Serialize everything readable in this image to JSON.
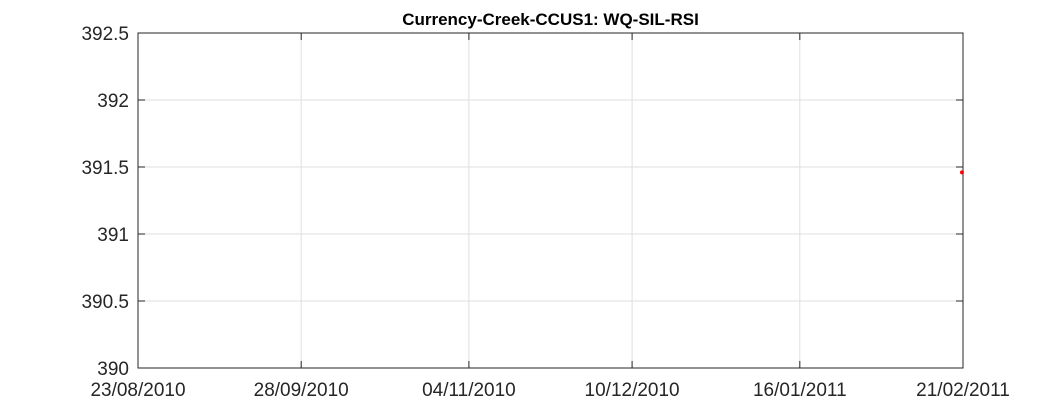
{
  "chart_data": {
    "type": "scatter",
    "title": "Currency-Creek-CCUS1: WQ-SIL-RSI",
    "xlabel": "",
    "ylabel": "",
    "x_tick_labels": [
      "23/08/2010",
      "28/09/2010",
      "04/11/2010",
      "10/12/2010",
      "16/01/2011",
      "21/02/2011"
    ],
    "x_tick_dates": [
      "2010-08-23",
      "2010-09-28",
      "2010-11-04",
      "2010-12-10",
      "2011-01-16",
      "2011-02-21"
    ],
    "xlim": [
      "2010-08-23",
      "2011-02-21"
    ],
    "y_tick_labels": [
      "390",
      "390.5",
      "391",
      "391.5",
      "392",
      "392.5"
    ],
    "y_ticks": [
      390,
      390.5,
      391,
      391.5,
      392,
      392.5
    ],
    "ylim": [
      390,
      392.5
    ],
    "grid": true,
    "series": [
      {
        "color": "#ff0000",
        "points": [
          {
            "x": "2011-02-21",
            "y": 391.46
          }
        ]
      }
    ]
  }
}
